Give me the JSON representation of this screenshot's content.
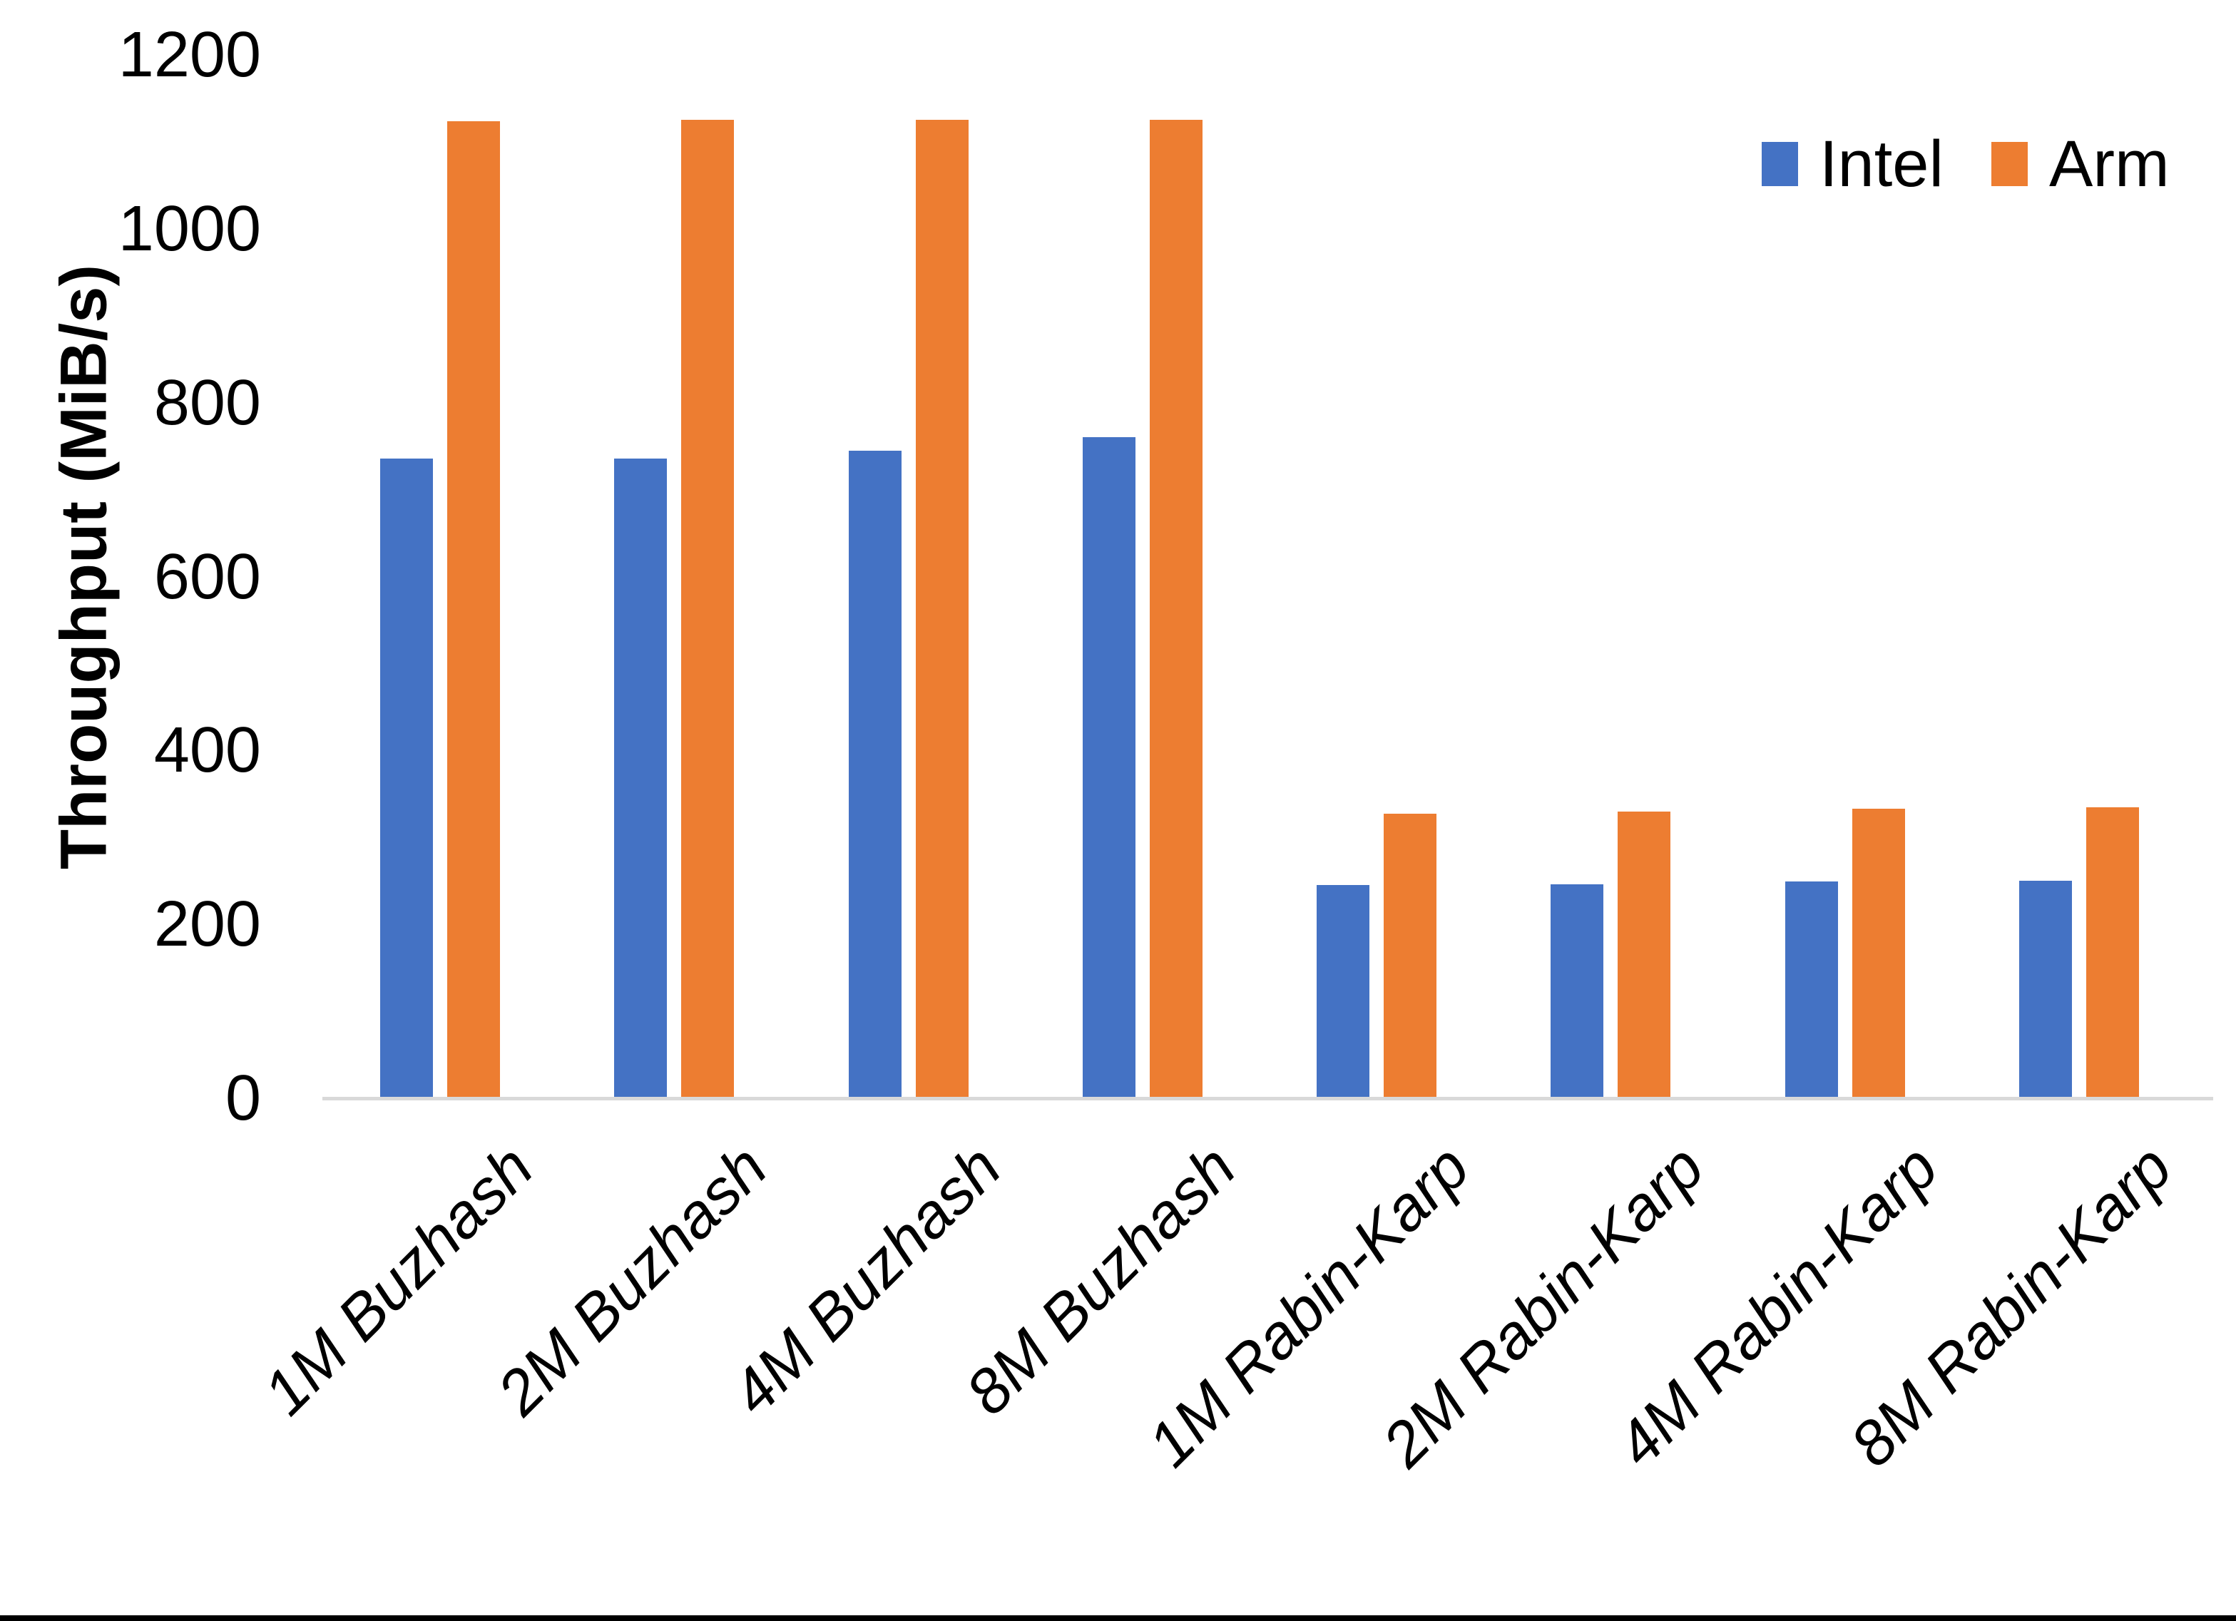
{
  "chart_data": {
    "type": "bar",
    "title": "",
    "ylabel": "Throughput (MiB/s)",
    "xlabel": "",
    "categories": [
      "1M Buzhash",
      "2M Buzhash",
      "4M Buzhash",
      "8M Buzhash",
      "1M Rabin-Karp",
      "2M Rabin-Karp",
      "4M Rabin-Karp",
      "8M Rabin-Karp"
    ],
    "series": [
      {
        "name": "Intel",
        "color": "#4472C4",
        "values": [
          736,
          736,
          745,
          760,
          245,
          246,
          249,
          250
        ]
      },
      {
        "name": "Arm",
        "color": "#ED7D31",
        "values": [
          1124,
          1125,
          1125,
          1125,
          327,
          330,
          333,
          335
        ]
      }
    ],
    "ylim": [
      0,
      1200
    ],
    "yticks": [
      0,
      200,
      400,
      600,
      800,
      1000,
      1200
    ],
    "grid": false,
    "legend_position": "top-right",
    "axis_line_color": "#D9D9D9",
    "text_color": "#000000",
    "background": "#FFFFFF"
  },
  "legend": {
    "items": [
      {
        "label": "Intel",
        "color": "#4472C4"
      },
      {
        "label": "Arm",
        "color": "#ED7D31"
      }
    ]
  },
  "y_axis": {
    "title": "Throughput (MiB/s)"
  }
}
